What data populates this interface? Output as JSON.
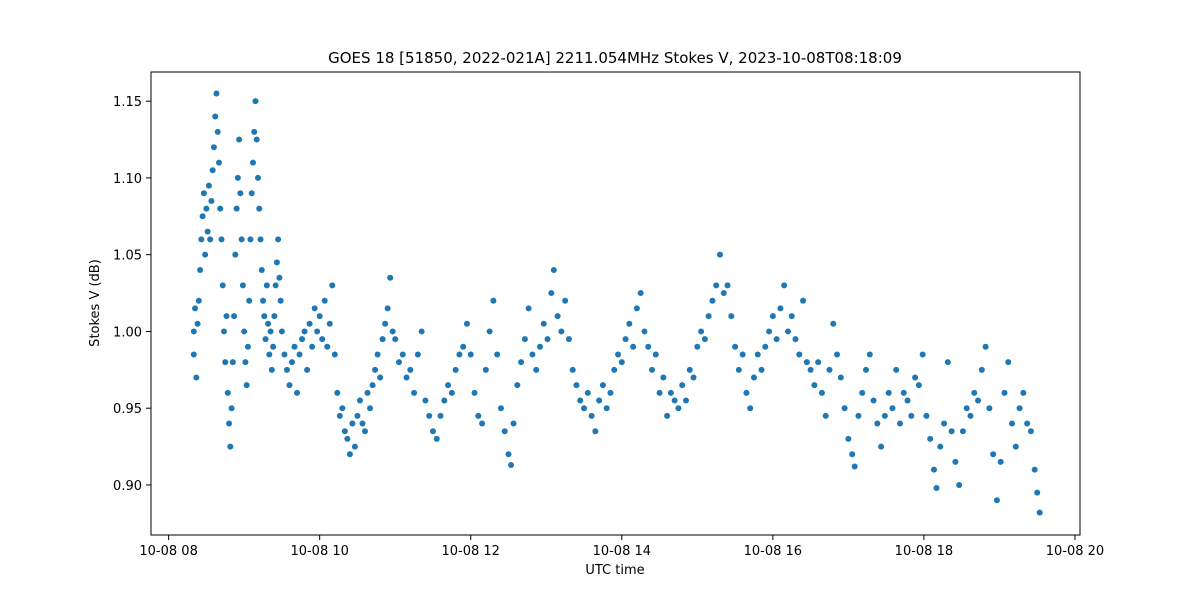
{
  "chart_data": {
    "type": "scatter",
    "title": "GOES 18 [51850, 2022-021A] 2211.054MHz Stokes V, 2023-10-08T08:18:09",
    "x_label": "UTC time",
    "y_label": "Stokes V (dB)",
    "xlim": [
      "10-08 07:46",
      "10-08 20:04"
    ],
    "ylim": [
      0.8674,
      1.169
    ],
    "xticks": [
      {
        "value": "10-08 08:00",
        "label": "10-08 08"
      },
      {
        "value": "10-08 10:00",
        "label": "10-08 10"
      },
      {
        "value": "10-08 12:00",
        "label": "10-08 12"
      },
      {
        "value": "10-08 14:00",
        "label": "10-08 14"
      },
      {
        "value": "10-08 16:00",
        "label": "10-08 16"
      },
      {
        "value": "10-08 18:00",
        "label": "10-08 18"
      },
      {
        "value": "10-08 20:00",
        "label": "10-08 20"
      }
    ],
    "yticks": [
      {
        "value": 0.9,
        "label": "0.90"
      },
      0.95,
      {
        "value": 1,
        "label": "1.00"
      },
      1.05,
      {
        "value": 1.1,
        "label": "1.10"
      },
      1.15
    ],
    "series": [
      {
        "color": "#1f77b4",
        "x": [
          "10-08 08:20",
          "10-08 08:20",
          "10-08 08:21",
          "10-08 08:22",
          "10-08 08:23",
          "10-08 08:24",
          "10-08 08:25",
          "10-08 08:26",
          "10-08 08:27",
          "10-08 08:28",
          "10-08 08:29",
          "10-08 08:30",
          "10-08 08:31",
          "10-08 08:32",
          "10-08 08:33",
          "10-08 08:34",
          "10-08 08:35",
          "10-08 08:36",
          "10-08 08:37",
          "10-08 08:38",
          "10-08 08:39",
          "10-08 08:40",
          "10-08 08:41",
          "10-08 08:42",
          "10-08 08:43",
          "10-08 08:44",
          "10-08 08:45",
          "10-08 08:46",
          "10-08 08:47",
          "10-08 08:48",
          "10-08 08:49",
          "10-08 08:50",
          "10-08 08:51",
          "10-08 08:52",
          "10-08 08:53",
          "10-08 08:54",
          "10-08 08:55",
          "10-08 08:56",
          "10-08 08:57",
          "10-08 08:58",
          "10-08 08:59",
          "10-08 09:00",
          "10-08 09:01",
          "10-08 09:02",
          "10-08 09:03",
          "10-08 09:04",
          "10-08 09:05",
          "10-08 09:06",
          "10-08 09:07",
          "10-08 09:08",
          "10-08 09:09",
          "10-08 09:10",
          "10-08 09:11",
          "10-08 09:12",
          "10-08 09:13",
          "10-08 09:14",
          "10-08 09:15",
          "10-08 09:16",
          "10-08 09:17",
          "10-08 09:18",
          "10-08 09:19",
          "10-08 09:20",
          "10-08 09:21",
          "10-08 09:22",
          "10-08 09:23",
          "10-08 09:24",
          "10-08 09:25",
          "10-08 09:26",
          "10-08 09:27",
          "10-08 09:28",
          "10-08 09:29",
          "10-08 09:30",
          "10-08 09:32",
          "10-08 09:34",
          "10-08 09:36",
          "10-08 09:38",
          "10-08 09:40",
          "10-08 09:42",
          "10-08 09:44",
          "10-08 09:46",
          "10-08 09:48",
          "10-08 09:50",
          "10-08 09:52",
          "10-08 09:54",
          "10-08 09:56",
          "10-08 09:58",
          "10-08 10:00",
          "10-08 10:02",
          "10-08 10:04",
          "10-08 10:06",
          "10-08 10:08",
          "10-08 10:10",
          "10-08 10:12",
          "10-08 10:14",
          "10-08 10:16",
          "10-08 10:18",
          "10-08 10:20",
          "10-08 10:22",
          "10-08 10:24",
          "10-08 10:26",
          "10-08 10:28",
          "10-08 10:30",
          "10-08 10:32",
          "10-08 10:34",
          "10-08 10:36",
          "10-08 10:38",
          "10-08 10:40",
          "10-08 10:42",
          "10-08 10:44",
          "10-08 10:46",
          "10-08 10:48",
          "10-08 10:50",
          "10-08 10:52",
          "10-08 10:54",
          "10-08 10:56",
          "10-08 10:58",
          "10-08 11:00",
          "10-08 11:03",
          "10-08 11:06",
          "10-08 11:09",
          "10-08 11:12",
          "10-08 11:15",
          "10-08 11:18",
          "10-08 11:21",
          "10-08 11:24",
          "10-08 11:27",
          "10-08 11:30",
          "10-08 11:33",
          "10-08 11:36",
          "10-08 11:39",
          "10-08 11:42",
          "10-08 11:45",
          "10-08 11:48",
          "10-08 11:51",
          "10-08 11:54",
          "10-08 11:57",
          "10-08 12:00",
          "10-08 12:03",
          "10-08 12:06",
          "10-08 12:09",
          "10-08 12:12",
          "10-08 12:15",
          "10-08 12:18",
          "10-08 12:21",
          "10-08 12:24",
          "10-08 12:27",
          "10-08 12:30",
          "10-08 12:32",
          "10-08 12:34",
          "10-08 12:37",
          "10-08 12:40",
          "10-08 12:43",
          "10-08 12:46",
          "10-08 12:49",
          "10-08 12:52",
          "10-08 12:55",
          "10-08 12:58",
          "10-08 13:01",
          "10-08 13:04",
          "10-08 13:06",
          "10-08 13:09",
          "10-08 13:12",
          "10-08 13:15",
          "10-08 13:18",
          "10-08 13:21",
          "10-08 13:24",
          "10-08 13:27",
          "10-08 13:30",
          "10-08 13:33",
          "10-08 13:36",
          "10-08 13:39",
          "10-08 13:42",
          "10-08 13:45",
          "10-08 13:48",
          "10-08 13:51",
          "10-08 13:54",
          "10-08 13:57",
          "10-08 14:00",
          "10-08 14:03",
          "10-08 14:06",
          "10-08 14:09",
          "10-08 14:12",
          "10-08 14:15",
          "10-08 14:18",
          "10-08 14:21",
          "10-08 14:24",
          "10-08 14:27",
          "10-08 14:30",
          "10-08 14:33",
          "10-08 14:36",
          "10-08 14:39",
          "10-08 14:42",
          "10-08 14:45",
          "10-08 14:48",
          "10-08 14:51",
          "10-08 14:54",
          "10-08 14:57",
          "10-08 15:00",
          "10-08 15:03",
          "10-08 15:06",
          "10-08 15:09",
          "10-08 15:12",
          "10-08 15:15",
          "10-08 15:18",
          "10-08 15:21",
          "10-08 15:24",
          "10-08 15:27",
          "10-08 15:30",
          "10-08 15:33",
          "10-08 15:36",
          "10-08 15:39",
          "10-08 15:42",
          "10-08 15:45",
          "10-08 15:48",
          "10-08 15:51",
          "10-08 15:54",
          "10-08 15:57",
          "10-08 16:00",
          "10-08 16:03",
          "10-08 16:06",
          "10-08 16:09",
          "10-08 16:12",
          "10-08 16:15",
          "10-08 16:18",
          "10-08 16:21",
          "10-08 16:24",
          "10-08 16:27",
          "10-08 16:30",
          "10-08 16:33",
          "10-08 16:36",
          "10-08 16:39",
          "10-08 16:42",
          "10-08 16:45",
          "10-08 16:48",
          "10-08 16:51",
          "10-08 16:54",
          "10-08 16:57",
          "10-08 17:00",
          "10-08 17:03",
          "10-08 17:05",
          "10-08 17:08",
          "10-08 17:11",
          "10-08 17:14",
          "10-08 17:17",
          "10-08 17:20",
          "10-08 17:23",
          "10-08 17:26",
          "10-08 17:29",
          "10-08 17:32",
          "10-08 17:35",
          "10-08 17:38",
          "10-08 17:41",
          "10-08 17:44",
          "10-08 17:47",
          "10-08 17:50",
          "10-08 17:53",
          "10-08 17:56",
          "10-08 17:59",
          "10-08 18:02",
          "10-08 18:05",
          "10-08 18:08",
          "10-08 18:10",
          "10-08 18:13",
          "10-08 18:16",
          "10-08 18:19",
          "10-08 18:22",
          "10-08 18:25",
          "10-08 18:28",
          "10-08 18:31",
          "10-08 18:34",
          "10-08 18:37",
          "10-08 18:40",
          "10-08 18:43",
          "10-08 18:46",
          "10-08 18:49",
          "10-08 18:52",
          "10-08 18:55",
          "10-08 18:58",
          "10-08 19:01",
          "10-08 19:04",
          "10-08 19:07",
          "10-08 19:10",
          "10-08 19:13",
          "10-08 19:16",
          "10-08 19:19",
          "10-08 19:22",
          "10-08 19:25",
          "10-08 19:28",
          "10-08 19:30",
          "10-08 19:32"
        ],
        "values": [
          1.0,
          0.985,
          1.015,
          0.97,
          1.005,
          1.02,
          1.04,
          1.06,
          1.075,
          1.09,
          1.05,
          1.08,
          1.065,
          1.095,
          1.06,
          1.085,
          1.105,
          1.12,
          1.14,
          1.155,
          1.13,
          1.11,
          1.08,
          1.06,
          1.03,
          1.0,
          0.98,
          1.01,
          0.96,
          0.94,
          0.925,
          0.95,
          0.98,
          1.01,
          1.05,
          1.08,
          1.1,
          1.125,
          1.09,
          1.06,
          1.03,
          1.0,
          0.98,
          0.965,
          0.99,
          1.02,
          1.06,
          1.09,
          1.11,
          1.13,
          1.15,
          1.125,
          1.1,
          1.08,
          1.06,
          1.04,
          1.02,
          1.01,
          0.995,
          1.03,
          1.005,
          0.985,
          1.0,
          0.975,
          0.99,
          1.01,
          1.03,
          1.045,
          1.06,
          1.035,
          1.02,
          1.0,
          0.985,
          0.975,
          0.965,
          0.98,
          0.99,
          0.96,
          0.985,
          0.995,
          1.0,
          0.975,
          1.005,
          0.99,
          1.015,
          1.0,
          1.01,
          0.995,
          1.02,
          0.99,
          1.005,
          1.03,
          0.985,
          0.96,
          0.945,
          0.95,
          0.935,
          0.93,
          0.92,
          0.94,
          0.925,
          0.945,
          0.955,
          0.94,
          0.935,
          0.96,
          0.95,
          0.965,
          0.975,
          0.985,
          0.97,
          0.995,
          1.005,
          1.015,
          1.035,
          1.0,
          0.995,
          0.98,
          0.985,
          0.97,
          0.975,
          0.96,
          0.985,
          1.0,
          0.955,
          0.945,
          0.935,
          0.93,
          0.945,
          0.955,
          0.965,
          0.96,
          0.975,
          0.985,
          0.99,
          1.005,
          0.985,
          0.96,
          0.945,
          0.94,
          0.975,
          1.0,
          1.02,
          0.985,
          0.95,
          0.935,
          0.92,
          0.913,
          0.94,
          0.965,
          0.98,
          0.995,
          1.015,
          0.985,
          0.975,
          0.99,
          1.005,
          0.995,
          1.025,
          1.04,
          1.01,
          1.0,
          1.02,
          0.995,
          0.975,
          0.965,
          0.955,
          0.95,
          0.96,
          0.945,
          0.935,
          0.955,
          0.965,
          0.95,
          0.96,
          0.975,
          0.985,
          0.98,
          0.995,
          1.005,
          0.99,
          1.015,
          1.025,
          1.0,
          0.99,
          0.975,
          0.985,
          0.96,
          0.97,
          0.945,
          0.96,
          0.955,
          0.95,
          0.965,
          0.955,
          0.975,
          0.97,
          0.99,
          1.0,
          0.995,
          1.01,
          1.02,
          1.03,
          1.05,
          1.025,
          1.03,
          1.01,
          0.99,
          0.975,
          0.985,
          0.96,
          0.95,
          0.97,
          0.985,
          0.975,
          0.99,
          1.0,
          1.01,
          0.995,
          1.015,
          1.03,
          1.0,
          1.01,
          0.995,
          0.985,
          1.02,
          0.98,
          0.975,
          0.965,
          0.98,
          0.96,
          0.945,
          0.975,
          1.005,
          0.985,
          0.97,
          0.95,
          0.93,
          0.92,
          0.912,
          0.945,
          0.96,
          0.975,
          0.985,
          0.955,
          0.94,
          0.925,
          0.945,
          0.96,
          0.95,
          0.975,
          0.94,
          0.96,
          0.955,
          0.945,
          0.97,
          0.965,
          0.985,
          0.945,
          0.93,
          0.91,
          0.898,
          0.925,
          0.94,
          0.98,
          0.935,
          0.915,
          0.9,
          0.935,
          0.95,
          0.945,
          0.96,
          0.955,
          0.975,
          0.99,
          0.95,
          0.92,
          0.89,
          0.915,
          0.96,
          0.98,
          0.94,
          0.925,
          0.95,
          0.96,
          0.94,
          0.935,
          0.91,
          0.895,
          0.882
        ]
      }
    ]
  }
}
